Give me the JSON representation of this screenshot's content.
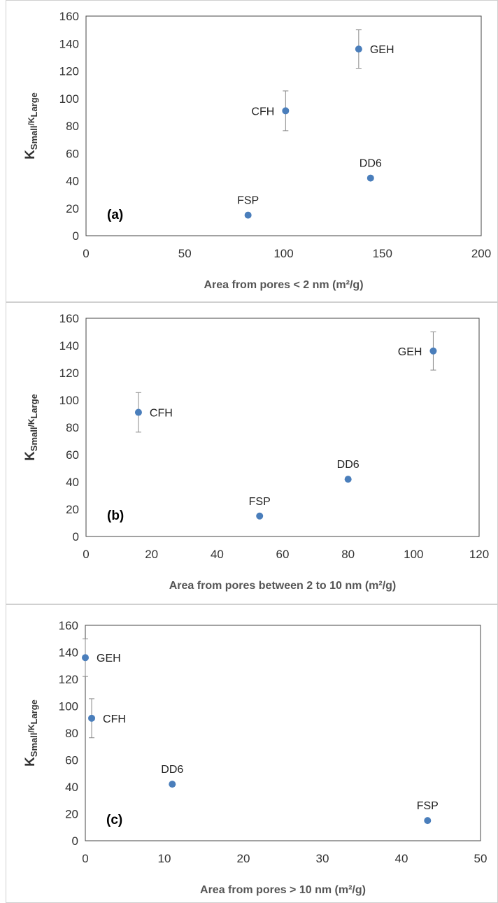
{
  "chart_data": [
    {
      "type": "scatter",
      "panel_label": "(a)",
      "xlabel": "Area from pores < 2 nm (m²/g)",
      "ylabel_main": "K",
      "ylabel_sub1": "Small",
      "ylabel_mid": "/K",
      "ylabel_sub2": "Large",
      "xlim": [
        0,
        200
      ],
      "ylim": [
        0,
        160
      ],
      "xticks": [
        0,
        50,
        100,
        150,
        200
      ],
      "yticks": [
        0,
        20,
        40,
        60,
        80,
        100,
        120,
        140,
        160
      ],
      "grid": false,
      "marker_color": "#4a7ebb",
      "points": [
        {
          "label": "GEH",
          "x": 138,
          "y": 136,
          "err": 14,
          "label_pos": "right"
        },
        {
          "label": "CFH",
          "x": 101,
          "y": 91,
          "err": 14.5,
          "label_pos": "left"
        },
        {
          "label": "DD6",
          "x": 144,
          "y": 42,
          "err": 0,
          "label_pos": "above"
        },
        {
          "label": "FSP",
          "x": 82,
          "y": 15,
          "err": 0,
          "label_pos": "above"
        }
      ]
    },
    {
      "type": "scatter",
      "panel_label": "(b)",
      "xlabel": "Area from pores between 2 to 10 nm (m²/g)",
      "ylabel_main": "K",
      "ylabel_sub1": "Small",
      "ylabel_mid": "/K",
      "ylabel_sub2": "Large",
      "xlim": [
        0,
        120
      ],
      "ylim": [
        0,
        160
      ],
      "xticks": [
        0,
        20,
        40,
        60,
        80,
        100,
        120
      ],
      "yticks": [
        0,
        20,
        40,
        60,
        80,
        100,
        120,
        140,
        160
      ],
      "grid": false,
      "marker_color": "#4a7ebb",
      "points": [
        {
          "label": "GEH",
          "x": 106,
          "y": 136,
          "err": 14,
          "label_pos": "left"
        },
        {
          "label": "CFH",
          "x": 16,
          "y": 91,
          "err": 14.5,
          "label_pos": "right"
        },
        {
          "label": "DD6",
          "x": 80,
          "y": 42,
          "err": 0.8,
          "label_pos": "above"
        },
        {
          "label": "FSP",
          "x": 53,
          "y": 15,
          "err": 0,
          "label_pos": "above"
        }
      ]
    },
    {
      "type": "scatter",
      "panel_label": "(c)",
      "xlabel": "Area from pores > 10 nm (m²/g)",
      "ylabel_main": "K",
      "ylabel_sub1": "Small",
      "ylabel_mid": "/K",
      "ylabel_sub2": "Large",
      "xlim": [
        0,
        50
      ],
      "ylim": [
        0,
        160
      ],
      "xticks": [
        0,
        10,
        20,
        30,
        40,
        50
      ],
      "yticks": [
        0,
        20,
        40,
        60,
        80,
        100,
        120,
        140,
        160
      ],
      "grid": false,
      "marker_color": "#4a7ebb",
      "points": [
        {
          "label": "GEH",
          "x": 0,
          "y": 136,
          "err": 14,
          "label_pos": "right"
        },
        {
          "label": "CFH",
          "x": 0.8,
          "y": 91,
          "err": 14.5,
          "label_pos": "right"
        },
        {
          "label": "DD6",
          "x": 11,
          "y": 42,
          "err": 0.8,
          "label_pos": "above"
        },
        {
          "label": "FSP",
          "x": 43.3,
          "y": 15,
          "err": 0,
          "label_pos": "above"
        }
      ]
    }
  ]
}
